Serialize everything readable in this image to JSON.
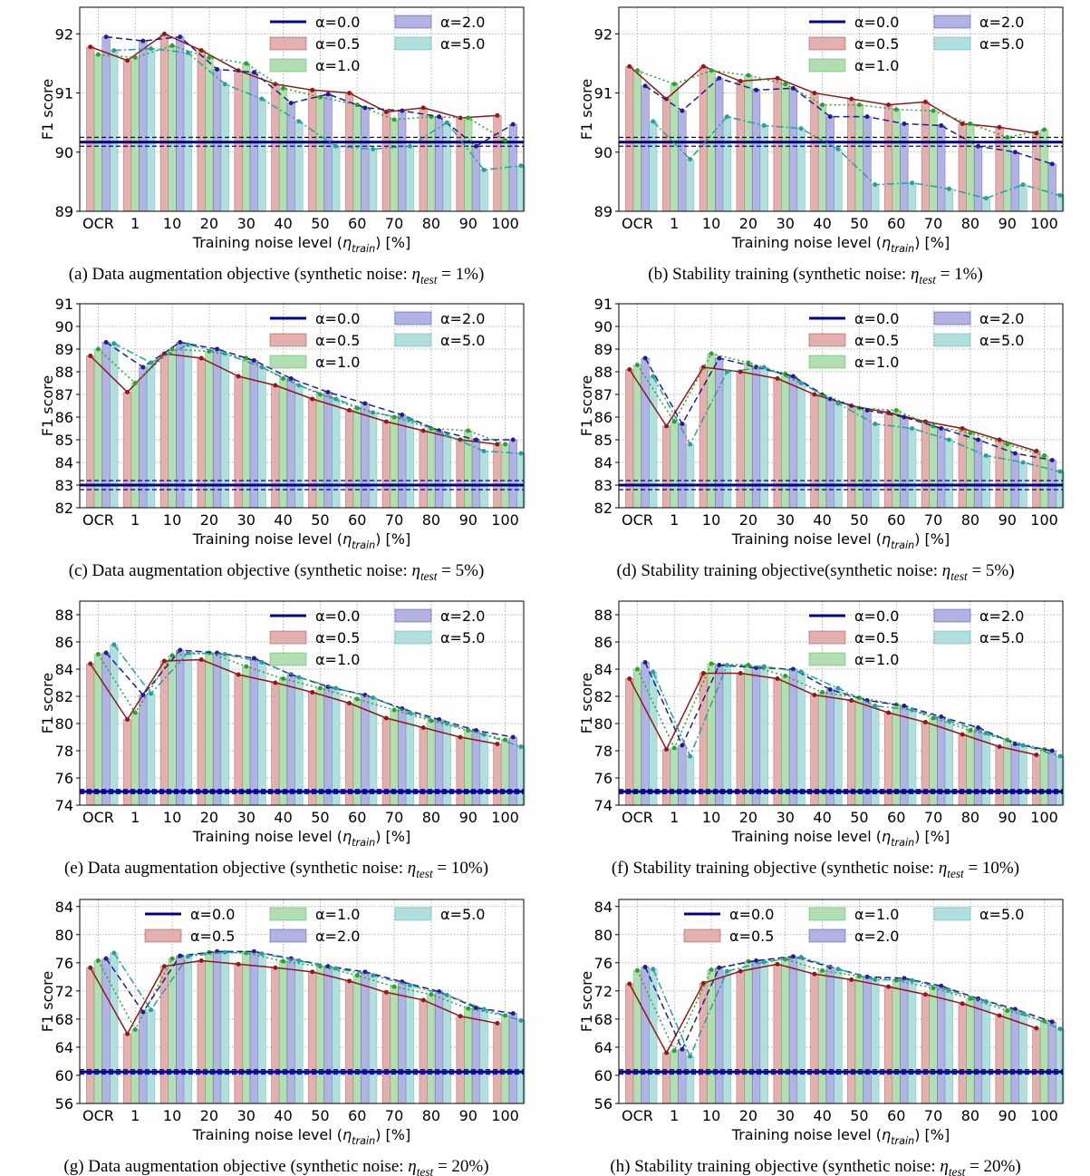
{
  "chart_data": [
    {
      "type": "bar",
      "caption": [
        "(a) Data augmentation objective (synthetic noise: ",
        "η",
        "test",
        " = 1%)"
      ],
      "xlabel": [
        "Training noise level (",
        "η",
        "train",
        ") [%]"
      ],
      "ylabel": "F1 score",
      "categories": [
        "OCR",
        "1",
        "10",
        "20",
        "30",
        "40",
        "50",
        "60",
        "70",
        "80",
        "90",
        "100"
      ],
      "ylim": [
        89,
        92.45
      ],
      "yticks": [
        89,
        90,
        91,
        92
      ],
      "grid": true,
      "legend_columns": 2,
      "baseline": {
        "name": "α=0.0",
        "color": "#00008b",
        "value": 90.17,
        "band": [
          90.1,
          90.25
        ]
      },
      "series": [
        {
          "name": "α=0.5",
          "color": "#e3b0b0",
          "line_color": "#8b1a1a",
          "linestyle": "solid",
          "values": [
            91.78,
            91.55,
            92.0,
            91.72,
            91.38,
            91.15,
            91.05,
            91.0,
            90.68,
            90.75,
            90.58,
            90.62
          ]
        },
        {
          "name": "α=1.0",
          "color": "#b3deb3",
          "line_color": "#2ca02c",
          "linestyle": "dotted",
          "values": [
            91.65,
            91.6,
            91.8,
            91.6,
            91.5,
            91.08,
            90.93,
            90.8,
            90.55,
            90.6,
            90.58,
            90.2
          ]
        },
        {
          "name": "α=2.0",
          "color": "#b3b3e3",
          "line_color": "#1f1f8b",
          "linestyle": "dashed",
          "values": [
            91.95,
            91.88,
            91.95,
            91.4,
            91.35,
            90.83,
            90.98,
            90.75,
            90.7,
            90.6,
            90.1,
            90.47
          ]
        },
        {
          "name": "α=5.0",
          "color": "#b3dede",
          "line_color": "#2a9d9d",
          "linestyle": "dashdot",
          "values": [
            91.72,
            91.75,
            91.68,
            91.15,
            90.9,
            90.52,
            90.1,
            90.05,
            90.1,
            90.5,
            89.7,
            89.77
          ]
        }
      ]
    },
    {
      "type": "bar",
      "caption": [
        "(b) Stability training (synthetic noise: ",
        "η",
        "test",
        " = 1%)"
      ],
      "xlabel": [
        "Training noise level (",
        "η",
        "train",
        ") [%]"
      ],
      "ylabel": "F1 score",
      "categories": [
        "OCR",
        "1",
        "10",
        "20",
        "30",
        "40",
        "50",
        "60",
        "70",
        "80",
        "90",
        "100"
      ],
      "ylim": [
        89,
        92.45
      ],
      "yticks": [
        89,
        90,
        91,
        92
      ],
      "grid": true,
      "legend_columns": 2,
      "baseline": {
        "name": "α=0.0",
        "color": "#00008b",
        "value": 90.17,
        "band": [
          90.1,
          90.25
        ]
      },
      "series": [
        {
          "name": "α=0.5",
          "color": "#e3b0b0",
          "line_color": "#8b1a1a",
          "linestyle": "solid",
          "values": [
            91.45,
            90.9,
            91.45,
            91.2,
            91.25,
            91.0,
            90.9,
            90.8,
            90.85,
            90.48,
            90.42,
            90.32
          ]
        },
        {
          "name": "α=1.0",
          "color": "#b3deb3",
          "line_color": "#2ca02c",
          "linestyle": "dotted",
          "values": [
            91.38,
            91.15,
            91.38,
            91.3,
            91.15,
            90.8,
            90.8,
            90.72,
            90.7,
            90.48,
            90.25,
            90.38
          ]
        },
        {
          "name": "α=2.0",
          "color": "#b3b3e3",
          "line_color": "#1f1f8b",
          "linestyle": "dashed",
          "values": [
            91.12,
            90.7,
            91.25,
            91.05,
            91.08,
            90.6,
            90.6,
            90.48,
            90.45,
            90.1,
            90.0,
            89.8
          ]
        },
        {
          "name": "α=5.0",
          "color": "#b3dede",
          "line_color": "#2a9d9d",
          "linestyle": "dashdot",
          "values": [
            90.52,
            89.88,
            90.6,
            90.45,
            90.4,
            90.05,
            89.45,
            89.48,
            89.38,
            89.22,
            89.45,
            89.27
          ]
        }
      ]
    },
    {
      "type": "bar",
      "caption": [
        "(c) Data augmentation objective (synthetic noise: ",
        "η",
        "test",
        " = 5%)"
      ],
      "xlabel": [
        "Training noise level (",
        "η",
        "train",
        ") [%]"
      ],
      "ylabel": "F1 score",
      "categories": [
        "OCR",
        "1",
        "10",
        "20",
        "30",
        "40",
        "50",
        "60",
        "70",
        "80",
        "90",
        "100"
      ],
      "ylim": [
        82,
        91
      ],
      "yticks": [
        82,
        83,
        84,
        85,
        86,
        87,
        88,
        89,
        90,
        91
      ],
      "grid": true,
      "legend_columns": 2,
      "baseline": {
        "name": "α=0.0",
        "color": "#00008b",
        "value": 83.0,
        "band": [
          82.8,
          83.2
        ]
      },
      "series": [
        {
          "name": "α=0.5",
          "color": "#e3b0b0",
          "line_color": "#8b1a1a",
          "linestyle": "solid",
          "values": [
            88.7,
            87.1,
            88.8,
            88.6,
            87.8,
            87.4,
            86.8,
            86.3,
            85.8,
            85.4,
            85.0,
            84.8
          ]
        },
        {
          "name": "α=1.0",
          "color": "#b3deb3",
          "line_color": "#2ca02c",
          "linestyle": "dotted",
          "values": [
            89.0,
            87.5,
            89.0,
            88.9,
            88.6,
            87.7,
            87.0,
            86.4,
            86.0,
            85.5,
            85.4,
            84.8
          ]
        },
        {
          "name": "α=2.0",
          "color": "#b3b3e3",
          "line_color": "#1f1f8b",
          "linestyle": "dashed",
          "values": [
            89.3,
            88.2,
            89.3,
            89.0,
            88.5,
            87.7,
            87.1,
            86.6,
            86.1,
            85.4,
            85.0,
            85.0
          ]
        },
        {
          "name": "α=5.0",
          "color": "#b3dede",
          "line_color": "#2a9d9d",
          "linestyle": "dashdot",
          "values": [
            89.25,
            88.4,
            89.2,
            88.8,
            88.2,
            87.4,
            86.8,
            86.2,
            85.9,
            85.2,
            84.5,
            84.4
          ]
        }
      ]
    },
    {
      "type": "bar",
      "caption": [
        "(d) Stability training objective(synthetic noise: ",
        "η",
        "test",
        " = 5%)"
      ],
      "xlabel": [
        "Training noise level (",
        "η",
        "train",
        ") [%]"
      ],
      "ylabel": "F1 score",
      "categories": [
        "OCR",
        "1",
        "10",
        "20",
        "30",
        "40",
        "50",
        "60",
        "70",
        "80",
        "90",
        "100"
      ],
      "ylim": [
        82,
        91
      ],
      "yticks": [
        82,
        83,
        84,
        85,
        86,
        87,
        88,
        89,
        90,
        91
      ],
      "grid": true,
      "legend_columns": 2,
      "baseline": {
        "name": "α=0.0",
        "color": "#00008b",
        "value": 83.0,
        "band": [
          82.8,
          83.2
        ]
      },
      "series": [
        {
          "name": "α=0.5",
          "color": "#e3b0b0",
          "line_color": "#8b1a1a",
          "linestyle": "solid",
          "values": [
            88.1,
            85.6,
            88.2,
            88.0,
            87.7,
            87.0,
            86.5,
            86.2,
            85.8,
            85.5,
            85.0,
            84.5
          ]
        },
        {
          "name": "α=1.0",
          "color": "#b3deb3",
          "line_color": "#2ca02c",
          "linestyle": "dotted",
          "values": [
            88.3,
            85.8,
            88.8,
            88.4,
            87.9,
            87.0,
            86.4,
            86.3,
            85.6,
            85.3,
            84.8,
            84.3
          ]
        },
        {
          "name": "α=2.0",
          "color": "#b3b3e3",
          "line_color": "#1f1f8b",
          "linestyle": "dashed",
          "values": [
            88.6,
            85.7,
            88.6,
            88.2,
            87.8,
            86.8,
            86.3,
            86.0,
            85.5,
            85.0,
            84.4,
            84.1
          ]
        },
        {
          "name": "α=5.0",
          "color": "#b3dede",
          "line_color": "#2a9d9d",
          "linestyle": "dashdot",
          "values": [
            87.8,
            84.8,
            88.0,
            88.2,
            87.5,
            86.6,
            85.7,
            85.5,
            85.0,
            84.3,
            84.0,
            83.6
          ]
        }
      ]
    },
    {
      "type": "bar",
      "caption": [
        "(e) Data augmentation objective (synthetic noise: ",
        "η",
        "test",
        " = 10%)"
      ],
      "xlabel": [
        "Training noise level (",
        "η",
        "train",
        ") [%]"
      ],
      "ylabel": "F1 score",
      "categories": [
        "OCR",
        "1",
        "10",
        "20",
        "30",
        "40",
        "50",
        "60",
        "70",
        "80",
        "90",
        "100"
      ],
      "ylim": [
        74,
        89
      ],
      "yticks": [
        74,
        76,
        78,
        80,
        82,
        84,
        86,
        88
      ],
      "grid": true,
      "legend_columns": 2,
      "baseline": {
        "name": "α=0.0",
        "color": "#00008b",
        "value": 75.0,
        "band": [
          74.85,
          75.15
        ]
      },
      "series": [
        {
          "name": "α=0.5",
          "color": "#e3b0b0",
          "line_color": "#8b1a1a",
          "linestyle": "solid",
          "values": [
            84.4,
            80.3,
            84.6,
            84.7,
            83.6,
            83.0,
            82.3,
            81.5,
            80.4,
            79.7,
            79.0,
            78.5
          ]
        },
        {
          "name": "α=1.0",
          "color": "#b3deb3",
          "line_color": "#2ca02c",
          "linestyle": "dotted",
          "values": [
            85.1,
            80.8,
            85.0,
            85.2,
            84.2,
            83.3,
            82.6,
            81.8,
            81.0,
            80.2,
            79.5,
            78.8
          ]
        },
        {
          "name": "α=2.0",
          "color": "#b3b3e3",
          "line_color": "#1f1f8b",
          "linestyle": "dashed",
          "values": [
            85.2,
            82.1,
            85.4,
            85.2,
            84.8,
            83.6,
            82.7,
            82.1,
            81.1,
            80.3,
            79.5,
            79.0
          ]
        },
        {
          "name": "α=5.0",
          "color": "#b3dede",
          "line_color": "#2a9d9d",
          "linestyle": "dashdot",
          "values": [
            85.8,
            82.2,
            85.2,
            85.1,
            84.5,
            83.4,
            82.6,
            81.9,
            80.8,
            80.0,
            79.2,
            78.3
          ]
        }
      ]
    },
    {
      "type": "bar",
      "caption": [
        "(f) Stability training objective (synthetic noise: ",
        "η",
        "test",
        " = 10%)"
      ],
      "xlabel": [
        "Training noise level (",
        "η",
        "train",
        ") [%]"
      ],
      "ylabel": "F1 score",
      "categories": [
        "OCR",
        "1",
        "10",
        "20",
        "30",
        "40",
        "50",
        "60",
        "70",
        "80",
        "90",
        "100"
      ],
      "ylim": [
        74,
        89
      ],
      "yticks": [
        74,
        76,
        78,
        80,
        82,
        84,
        86,
        88
      ],
      "grid": true,
      "legend_columns": 2,
      "baseline": {
        "name": "α=0.0",
        "color": "#00008b",
        "value": 75.0,
        "band": [
          74.85,
          75.15
        ]
      },
      "series": [
        {
          "name": "α=0.5",
          "color": "#e3b0b0",
          "line_color": "#8b1a1a",
          "linestyle": "solid",
          "values": [
            83.3,
            78.1,
            83.7,
            83.7,
            83.3,
            82.1,
            81.7,
            80.8,
            80.1,
            79.2,
            78.3,
            77.7
          ]
        },
        {
          "name": "α=1.0",
          "color": "#b3deb3",
          "line_color": "#2ca02c",
          "linestyle": "dotted",
          "values": [
            84.0,
            78.2,
            84.4,
            84.3,
            83.5,
            82.3,
            81.9,
            81.4,
            80.4,
            79.5,
            78.8,
            78.1
          ]
        },
        {
          "name": "α=2.0",
          "color": "#b3b3e3",
          "line_color": "#1f1f8b",
          "linestyle": "dashed",
          "values": [
            84.5,
            78.4,
            84.3,
            84.1,
            84.0,
            82.5,
            81.7,
            81.3,
            80.5,
            79.7,
            78.5,
            78.0
          ]
        },
        {
          "name": "α=5.0",
          "color": "#b3dede",
          "line_color": "#2a9d9d",
          "linestyle": "dashdot",
          "values": [
            83.8,
            77.6,
            84.3,
            84.2,
            83.8,
            82.6,
            81.3,
            81.0,
            80.2,
            79.3,
            78.4,
            77.6
          ]
        }
      ]
    },
    {
      "type": "bar",
      "caption": [
        "(g) Data augmentation objective (synthetic noise: ",
        "η",
        "test",
        " = 20%)"
      ],
      "xlabel": [
        "Training noise level (",
        "η",
        "train",
        ") [%]"
      ],
      "ylabel": "F1 score",
      "categories": [
        "OCR",
        "1",
        "10",
        "20",
        "30",
        "40",
        "50",
        "60",
        "70",
        "80",
        "90",
        "100"
      ],
      "ylim": [
        56,
        85
      ],
      "yticks": [
        56,
        60,
        64,
        68,
        72,
        76,
        80,
        84
      ],
      "grid": true,
      "legend_columns": 3,
      "baseline": {
        "name": "α=0.0",
        "color": "#00008b",
        "value": 60.5,
        "band": [
          60.2,
          60.8
        ]
      },
      "series": [
        {
          "name": "α=0.5",
          "color": "#e3b0b0",
          "line_color": "#8b1a1a",
          "linestyle": "solid",
          "values": [
            75.3,
            65.9,
            75.5,
            76.3,
            75.8,
            75.3,
            74.7,
            73.4,
            71.8,
            70.7,
            68.4,
            67.4
          ]
        },
        {
          "name": "α=1.0",
          "color": "#b3deb3",
          "line_color": "#2ca02c",
          "linestyle": "dotted",
          "values": [
            76.3,
            66.5,
            76.6,
            77.5,
            77.4,
            76.2,
            75.5,
            74.2,
            72.6,
            71.5,
            69.5,
            68.5
          ]
        },
        {
          "name": "α=2.0",
          "color": "#b3b3e3",
          "line_color": "#1f1f8b",
          "linestyle": "dashed",
          "values": [
            76.6,
            69.0,
            77.0,
            77.6,
            77.6,
            76.6,
            75.5,
            74.7,
            73.3,
            71.9,
            69.6,
            68.8
          ]
        },
        {
          "name": "α=5.0",
          "color": "#b3dede",
          "line_color": "#2a9d9d",
          "linestyle": "dashdot",
          "values": [
            77.4,
            69.3,
            76.9,
            77.5,
            77.3,
            76.3,
            75.2,
            74.2,
            72.8,
            71.4,
            69.4,
            67.8
          ]
        }
      ]
    },
    {
      "type": "bar",
      "caption": [
        "(h) Stability training objective (synthetic noise: ",
        "η",
        "test",
        " = 20%)"
      ],
      "xlabel": [
        "Training noise level (",
        "η",
        "train",
        ") [%]"
      ],
      "ylabel": "F1 score",
      "categories": [
        "OCR",
        "1",
        "10",
        "20",
        "30",
        "40",
        "50",
        "60",
        "70",
        "80",
        "90",
        "100"
      ],
      "ylim": [
        56,
        85
      ],
      "yticks": [
        56,
        60,
        64,
        68,
        72,
        76,
        80,
        84
      ],
      "grid": true,
      "legend_columns": 3,
      "baseline": {
        "name": "α=0.0",
        "color": "#00008b",
        "value": 60.5,
        "band": [
          60.2,
          60.8
        ]
      },
      "series": [
        {
          "name": "α=0.5",
          "color": "#e3b0b0",
          "line_color": "#8b1a1a",
          "linestyle": "solid",
          "values": [
            73.0,
            63.2,
            73.1,
            74.8,
            75.8,
            74.4,
            73.6,
            72.6,
            71.5,
            70.2,
            68.5,
            66.7
          ]
        },
        {
          "name": "α=1.0",
          "color": "#b3deb3",
          "line_color": "#2ca02c",
          "linestyle": "dotted",
          "values": [
            74.9,
            63.5,
            75.0,
            76.2,
            76.5,
            74.9,
            74.1,
            73.5,
            72.4,
            70.9,
            69.2,
            67.7
          ]
        },
        {
          "name": "α=2.0",
          "color": "#b3b3e3",
          "line_color": "#1f1f8b",
          "linestyle": "dashed",
          "values": [
            75.4,
            63.7,
            75.3,
            76.3,
            76.9,
            75.4,
            74.0,
            73.8,
            72.7,
            70.9,
            69.4,
            67.6
          ]
        },
        {
          "name": "α=5.0",
          "color": "#b3dede",
          "line_color": "#2a9d9d",
          "linestyle": "dashdot",
          "values": [
            75.1,
            62.7,
            74.8,
            76.1,
            76.8,
            75.1,
            73.6,
            73.5,
            72.1,
            70.5,
            68.8,
            66.6
          ]
        }
      ]
    }
  ]
}
